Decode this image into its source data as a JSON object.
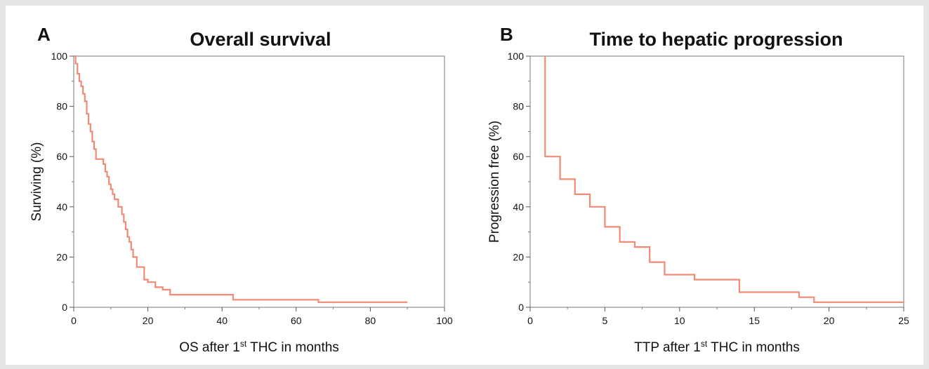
{
  "chart_data": [
    {
      "panel": "A",
      "type": "line",
      "subtype": "kaplan-meier step",
      "title": "Overall survival",
      "xlabel": {
        "pre": "OS after 1",
        "sup": "st",
        "post": " THC in months"
      },
      "ylabel": "Surviving (%)",
      "xlim": [
        0,
        100
      ],
      "ylim": [
        0,
        100
      ],
      "xticks": [
        0,
        20,
        40,
        60,
        80,
        100
      ],
      "yticks": [
        0,
        20,
        40,
        60,
        80,
        100
      ],
      "grid": false,
      "color": "#f08a75",
      "series": [
        {
          "x": [
            0,
            0.5,
            1,
            1.5,
            2,
            2.5,
            3,
            3.5,
            4,
            4.5,
            5,
            5.5,
            6,
            7,
            8,
            8.5,
            9,
            9.5,
            10,
            10.5,
            11,
            12,
            13,
            13.5,
            14,
            14.5,
            15,
            15.5,
            16,
            17,
            19,
            20,
            22,
            24,
            26,
            43,
            66,
            90
          ],
          "y": [
            100,
            97,
            93,
            90,
            88,
            85,
            82,
            77,
            73,
            70,
            66,
            63,
            59,
            59,
            57,
            54,
            52,
            49,
            47,
            45,
            43,
            40,
            37,
            34,
            31,
            28,
            26,
            23,
            20,
            16,
            11,
            10,
            8,
            7,
            5,
            3,
            2,
            2
          ]
        }
      ]
    },
    {
      "panel": "B",
      "type": "line",
      "subtype": "kaplan-meier step",
      "title": "Time to hepatic progression",
      "xlabel": {
        "pre": "TTP after 1",
        "sup": "st",
        "post": " THC in months"
      },
      "ylabel": "Progression free (%)",
      "xlim": [
        0,
        25
      ],
      "ylim": [
        0,
        100
      ],
      "xticks": [
        0,
        5,
        10,
        15,
        20,
        25
      ],
      "yticks": [
        0,
        20,
        40,
        60,
        80,
        100
      ],
      "grid": false,
      "color": "#f08a75",
      "series": [
        {
          "x": [
            1,
            1,
            2,
            3,
            4,
            5,
            6,
            7,
            8,
            9,
            11,
            14,
            18,
            19,
            25
          ],
          "y": [
            100,
            60,
            51,
            45,
            40,
            32,
            26,
            24,
            18,
            13,
            11,
            6,
            4,
            2,
            2
          ]
        }
      ]
    }
  ]
}
